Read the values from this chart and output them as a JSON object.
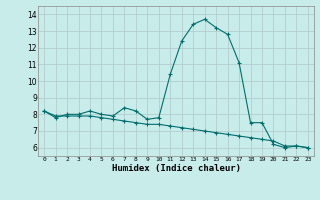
{
  "xlabel": "Humidex (Indice chaleur)",
  "bg_color": "#c8ece9",
  "grid_color": "#b0c8c8",
  "line_color": "#006e6e",
  "x_data": [
    0,
    1,
    2,
    3,
    4,
    5,
    6,
    7,
    8,
    9,
    10,
    11,
    12,
    13,
    14,
    15,
    16,
    17,
    18,
    19,
    20,
    21,
    22,
    23
  ],
  "line1_y": [
    8.2,
    7.8,
    8.0,
    8.0,
    8.2,
    8.0,
    7.9,
    8.4,
    8.2,
    7.7,
    7.8,
    10.4,
    12.4,
    13.4,
    13.7,
    13.2,
    12.8,
    11.1,
    7.5,
    7.5,
    6.2,
    6.0,
    6.1,
    6.0
  ],
  "line2_y": [
    8.2,
    7.9,
    7.9,
    7.9,
    7.9,
    7.8,
    7.7,
    7.6,
    7.5,
    7.4,
    7.4,
    7.3,
    7.2,
    7.1,
    7.0,
    6.9,
    6.8,
    6.7,
    6.6,
    6.5,
    6.4,
    6.1,
    6.1,
    6.0
  ],
  "ylim": [
    5.5,
    14.5
  ],
  "yticks": [
    6,
    7,
    8,
    9,
    10,
    11,
    12,
    13,
    14
  ],
  "xlim": [
    -0.5,
    23.5
  ],
  "xticks": [
    0,
    1,
    2,
    3,
    4,
    5,
    6,
    7,
    8,
    9,
    10,
    11,
    12,
    13,
    14,
    15,
    16,
    17,
    18,
    19,
    20,
    21,
    22,
    23
  ]
}
